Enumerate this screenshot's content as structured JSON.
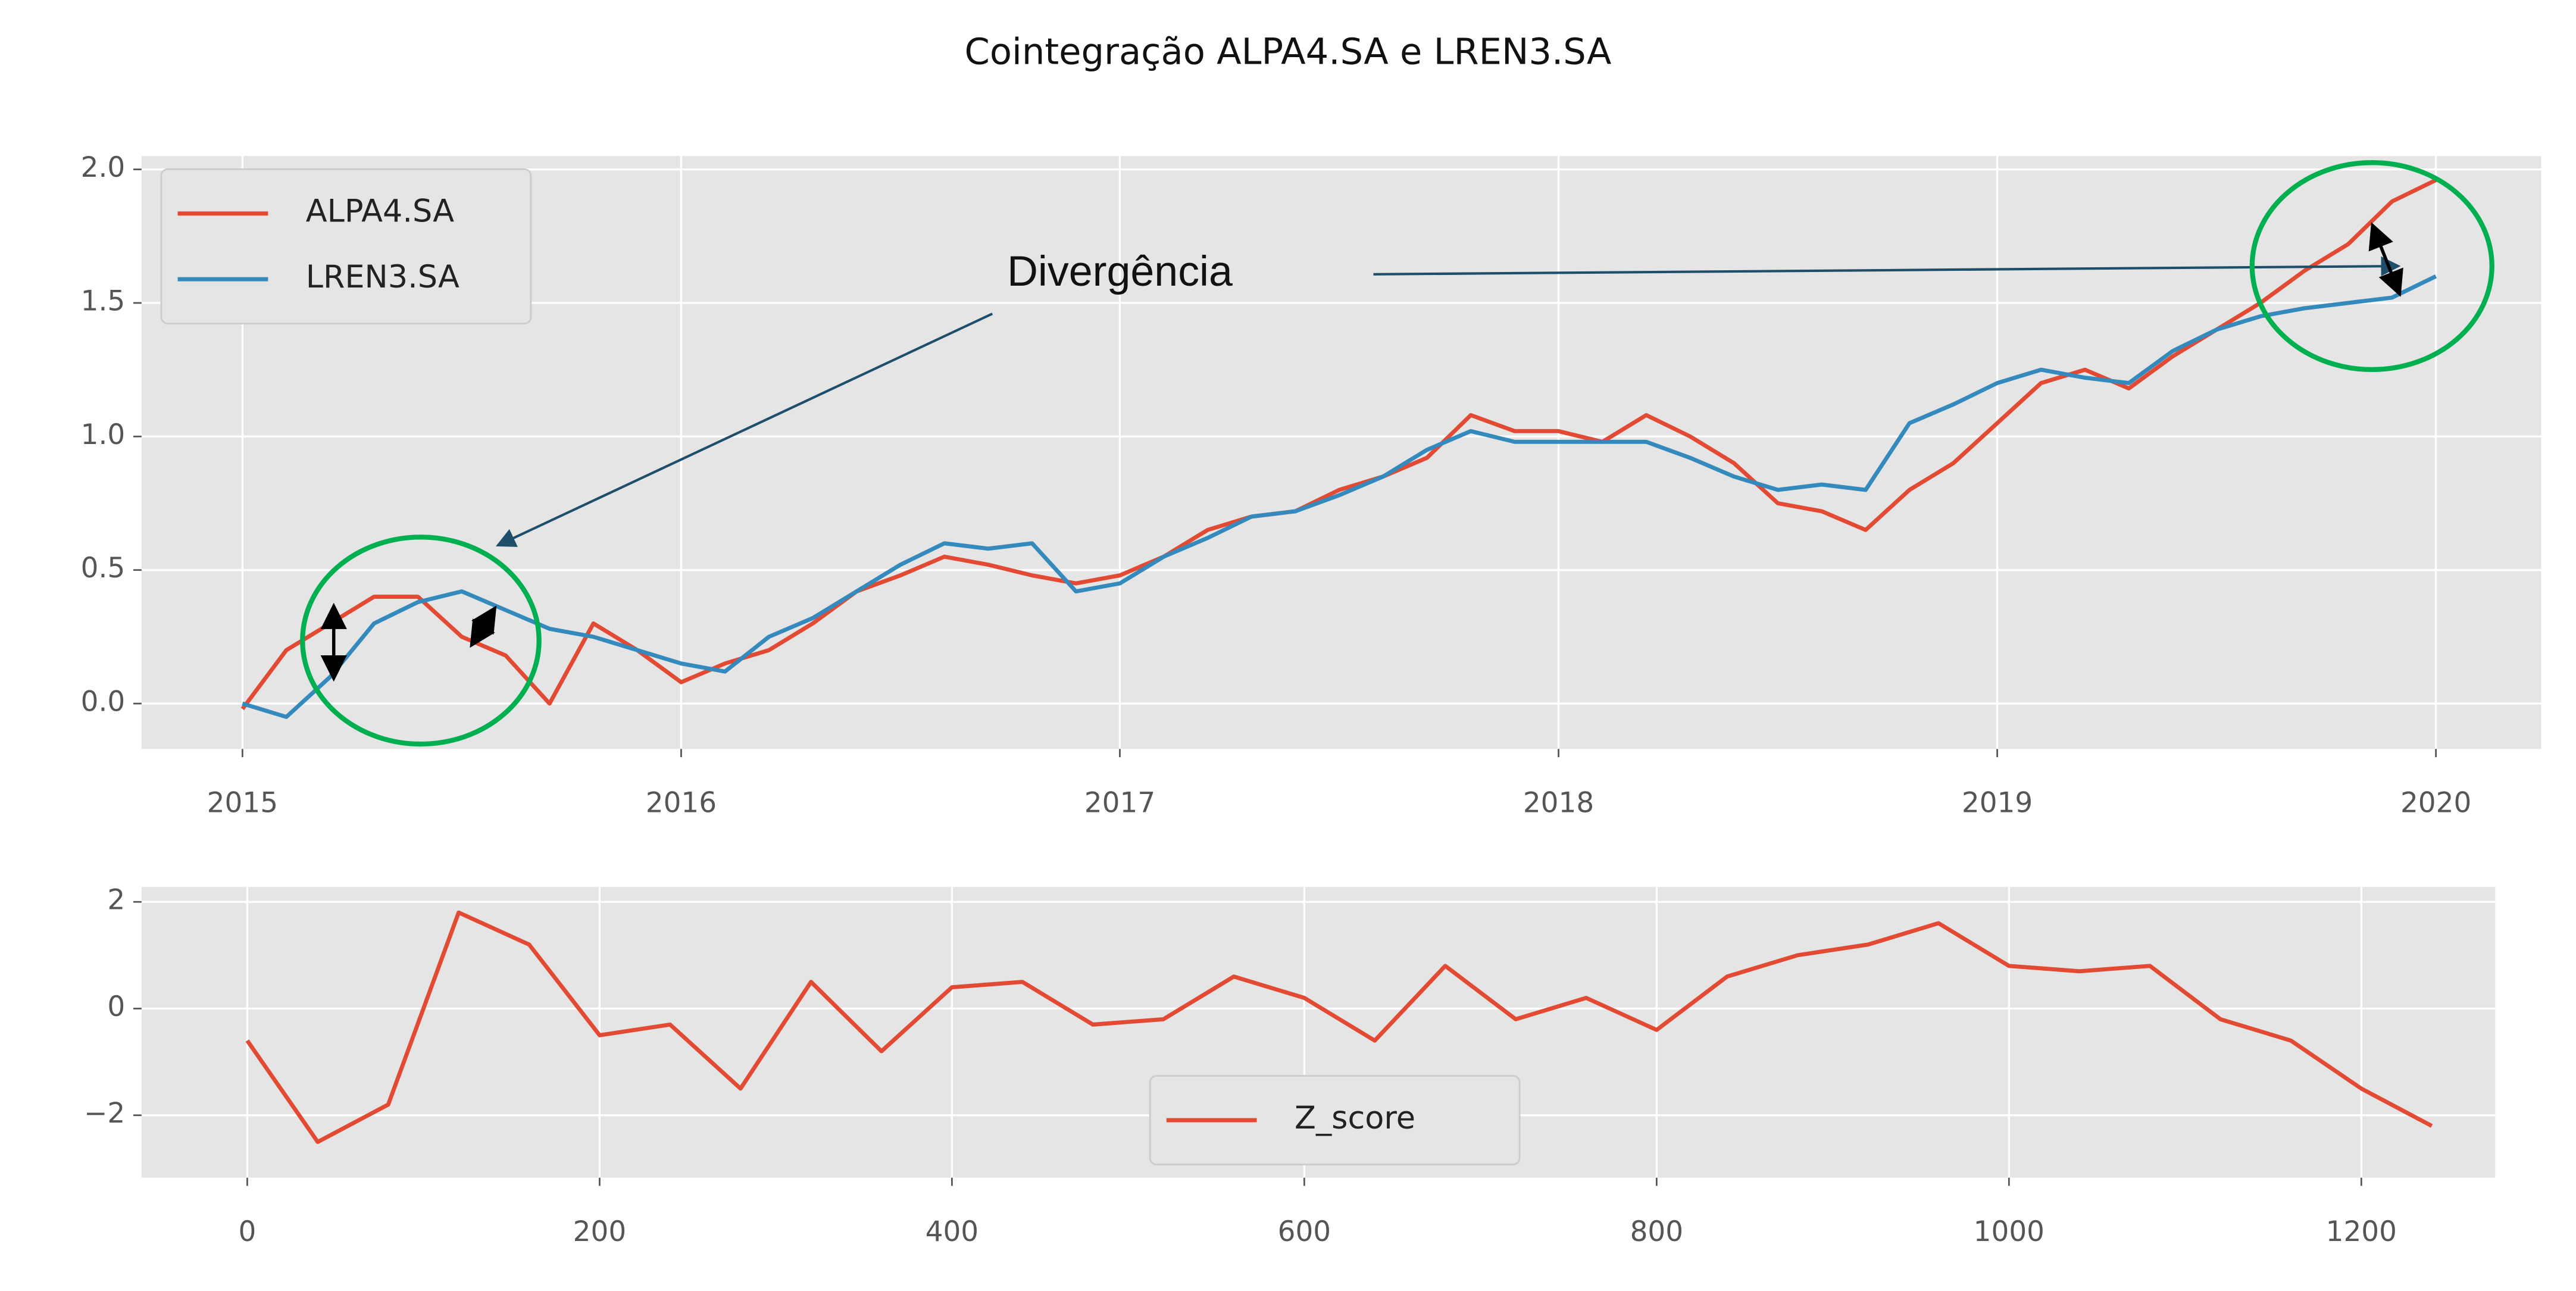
{
  "chart_data": [
    {
      "type": "line",
      "title": "Cointegração ALPA4.SA e LREN3.SA",
      "annotation": "Divergência",
      "x": [
        2015.0,
        2015.1,
        2015.2,
        2015.3,
        2015.4,
        2015.5,
        2015.6,
        2015.7,
        2015.8,
        2015.9,
        2016.0,
        2016.1,
        2016.2,
        2016.3,
        2016.4,
        2016.5,
        2016.6,
        2016.7,
        2016.8,
        2016.9,
        2017.0,
        2017.1,
        2017.2,
        2017.3,
        2017.4,
        2017.5,
        2017.6,
        2017.7,
        2017.8,
        2017.9,
        2018.0,
        2018.1,
        2018.2,
        2018.3,
        2018.4,
        2018.5,
        2018.6,
        2018.7,
        2018.8,
        2018.9,
        2019.0,
        2019.1,
        2019.2,
        2019.3,
        2019.4,
        2019.5,
        2019.6,
        2019.7,
        2019.8,
        2019.9,
        2020.0
      ],
      "series": [
        {
          "name": "ALPA4.SA",
          "color": "#e24a33",
          "values": [
            -0.02,
            0.2,
            0.3,
            0.4,
            0.4,
            0.25,
            0.18,
            0.0,
            0.3,
            0.2,
            0.08,
            0.15,
            0.2,
            0.3,
            0.42,
            0.48,
            0.55,
            0.52,
            0.48,
            0.45,
            0.48,
            0.55,
            0.65,
            0.7,
            0.72,
            0.8,
            0.85,
            0.92,
            1.08,
            1.02,
            1.02,
            0.98,
            1.08,
            1.0,
            0.9,
            0.75,
            0.72,
            0.65,
            0.8,
            0.9,
            1.05,
            1.2,
            1.25,
            1.18,
            1.3,
            1.4,
            1.5,
            1.62,
            1.72,
            1.88,
            1.96
          ]
        },
        {
          "name": "LREN3.SA",
          "color": "#348abd",
          "values": [
            0.0,
            -0.05,
            0.1,
            0.3,
            0.38,
            0.42,
            0.35,
            0.28,
            0.25,
            0.2,
            0.15,
            0.12,
            0.25,
            0.32,
            0.42,
            0.52,
            0.6,
            0.58,
            0.6,
            0.42,
            0.45,
            0.55,
            0.62,
            0.7,
            0.72,
            0.78,
            0.85,
            0.95,
            1.02,
            0.98,
            0.98,
            0.98,
            0.98,
            0.92,
            0.85,
            0.8,
            0.82,
            0.8,
            1.05,
            1.12,
            1.2,
            1.25,
            1.22,
            1.2,
            1.32,
            1.4,
            1.45,
            1.48,
            1.5,
            1.52,
            1.6
          ]
        }
      ],
      "xlim": [
        2014.77,
        2020.24
      ],
      "xticks": [
        2015,
        2016,
        2017,
        2018,
        2019,
        2020
      ],
      "ylim": [
        -0.17,
        2.05
      ],
      "yticks": [
        {
          "value": 0,
          "label": "0.0"
        },
        0.5,
        {
          "value": 1,
          "label": "1.0"
        },
        1.5,
        {
          "value": 2,
          "label": "2.0"
        }
      ],
      "grid": true,
      "legend": "upper left"
    },
    {
      "type": "line",
      "x": [
        0,
        40,
        80,
        120,
        160,
        200,
        240,
        280,
        320,
        360,
        400,
        440,
        480,
        520,
        560,
        600,
        640,
        680,
        720,
        760,
        800,
        840,
        880,
        920,
        960,
        1000,
        1040,
        1080,
        1120,
        1160,
        1200,
        1240
      ],
      "series": [
        {
          "name": "Z_score",
          "color": "#e24a33",
          "values": [
            -0.6,
            -2.5,
            -1.8,
            1.8,
            1.2,
            -0.5,
            -0.3,
            -1.5,
            0.5,
            -0.8,
            0.4,
            0.5,
            -0.3,
            -0.2,
            0.6,
            0.2,
            -0.6,
            0.8,
            -0.2,
            0.2,
            -0.4,
            0.6,
            1.0,
            1.2,
            1.6,
            0.8,
            0.7,
            0.8,
            -0.2,
            -0.6,
            -1.5,
            -2.2
          ]
        }
      ],
      "xlim": [
        -60,
        1276
      ],
      "xticks": [
        0,
        200,
        400,
        600,
        800,
        1000,
        1200
      ],
      "ylim": [
        -3.17,
        2.28
      ],
      "yticks": [
        {
          "value": -2,
          "label": "−2"
        },
        0,
        2
      ],
      "grid": true,
      "legend": "lower center"
    }
  ]
}
